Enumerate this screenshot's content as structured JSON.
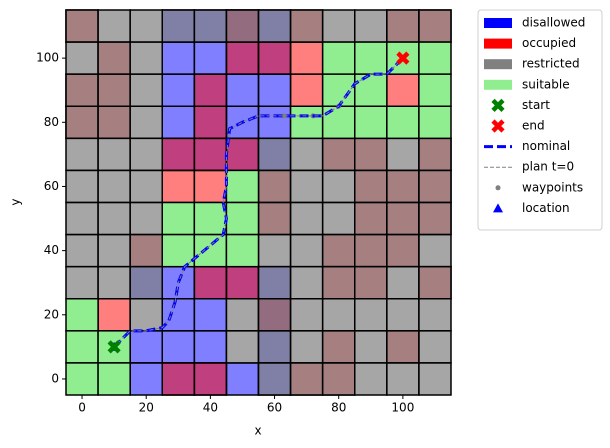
{
  "chart_data": {
    "type": "grid-map",
    "xlabel": "x",
    "ylabel": "y",
    "xlim": [
      -5,
      115
    ],
    "ylim": [
      -5,
      115
    ],
    "xticks": [
      0,
      20,
      40,
      60,
      80,
      100
    ],
    "yticks": [
      0,
      20,
      40,
      60,
      80,
      100
    ],
    "cell_size": 10,
    "series": [
      {
        "name": "disallowed",
        "type": "cells",
        "color": "#0000ff",
        "opacity": 0.5,
        "cells": [
          [
            30,
            110
          ],
          [
            40,
            110
          ],
          [
            50,
            110
          ],
          [
            60,
            110
          ],
          [
            30,
            100
          ],
          [
            40,
            100
          ],
          [
            50,
            100
          ],
          [
            60,
            100
          ],
          [
            30,
            90
          ],
          [
            40,
            90
          ],
          [
            50,
            90
          ],
          [
            60,
            90
          ],
          [
            30,
            80
          ],
          [
            40,
            80
          ],
          [
            50,
            80
          ],
          [
            60,
            80
          ],
          [
            30,
            70
          ],
          [
            40,
            70
          ],
          [
            50,
            70
          ],
          [
            60,
            70
          ],
          [
            20,
            30
          ],
          [
            30,
            30
          ],
          [
            40,
            30
          ],
          [
            50,
            30
          ],
          [
            60,
            30
          ],
          [
            30,
            20
          ],
          [
            40,
            20
          ],
          [
            60,
            20
          ],
          [
            20,
            10
          ],
          [
            30,
            10
          ],
          [
            40,
            10
          ],
          [
            60,
            10
          ],
          [
            20,
            0
          ],
          [
            30,
            0
          ],
          [
            40,
            0
          ],
          [
            50,
            0
          ],
          [
            60,
            0
          ]
        ]
      },
      {
        "name": "occupied",
        "type": "cells",
        "color": "#ff0000",
        "opacity": 0.5,
        "cells": [
          [
            0,
            110
          ],
          [
            50,
            110
          ],
          [
            70,
            110
          ],
          [
            100,
            110
          ],
          [
            110,
            110
          ],
          [
            10,
            100
          ],
          [
            50,
            100
          ],
          [
            60,
            100
          ],
          [
            70,
            100
          ],
          [
            0,
            90
          ],
          [
            10,
            90
          ],
          [
            40,
            90
          ],
          [
            70,
            90
          ],
          [
            100,
            90
          ],
          [
            0,
            80
          ],
          [
            10,
            80
          ],
          [
            40,
            80
          ],
          [
            30,
            70
          ],
          [
            40,
            70
          ],
          [
            50,
            70
          ],
          [
            80,
            70
          ],
          [
            90,
            70
          ],
          [
            110,
            70
          ],
          [
            30,
            60
          ],
          [
            40,
            60
          ],
          [
            60,
            60
          ],
          [
            90,
            60
          ],
          [
            100,
            60
          ],
          [
            110,
            60
          ],
          [
            60,
            50
          ],
          [
            90,
            50
          ],
          [
            100,
            50
          ],
          [
            110,
            50
          ],
          [
            20,
            40
          ],
          [
            80,
            40
          ],
          [
            90,
            40
          ],
          [
            100,
            40
          ],
          [
            40,
            30
          ],
          [
            50,
            30
          ],
          [
            80,
            30
          ],
          [
            90,
            30
          ],
          [
            110,
            30
          ],
          [
            10,
            20
          ],
          [
            60,
            20
          ],
          [
            80,
            10
          ],
          [
            100,
            10
          ],
          [
            30,
            0
          ],
          [
            40,
            0
          ],
          [
            70,
            0
          ],
          [
            80,
            0
          ]
        ]
      },
      {
        "name": "restricted",
        "type": "cells",
        "color": "#808080",
        "opacity": 0.7,
        "cells": [
          [
            0,
            110
          ],
          [
            10,
            110
          ],
          [
            20,
            110
          ],
          [
            30,
            110
          ],
          [
            40,
            110
          ],
          [
            50,
            110
          ],
          [
            60,
            110
          ],
          [
            70,
            110
          ],
          [
            80,
            110
          ],
          [
            90,
            110
          ],
          [
            100,
            110
          ],
          [
            110,
            110
          ],
          [
            0,
            100
          ],
          [
            10,
            100
          ],
          [
            20,
            100
          ],
          [
            0,
            90
          ],
          [
            10,
            90
          ],
          [
            20,
            90
          ],
          [
            0,
            80
          ],
          [
            10,
            80
          ],
          [
            20,
            80
          ],
          [
            0,
            70
          ],
          [
            10,
            70
          ],
          [
            20,
            70
          ],
          [
            60,
            70
          ],
          [
            70,
            70
          ],
          [
            80,
            70
          ],
          [
            90,
            70
          ],
          [
            100,
            70
          ],
          [
            110,
            70
          ],
          [
            0,
            60
          ],
          [
            10,
            60
          ],
          [
            20,
            60
          ],
          [
            60,
            60
          ],
          [
            70,
            60
          ],
          [
            80,
            60
          ],
          [
            90,
            60
          ],
          [
            100,
            60
          ],
          [
            110,
            60
          ],
          [
            0,
            50
          ],
          [
            10,
            50
          ],
          [
            20,
            50
          ],
          [
            60,
            50
          ],
          [
            70,
            50
          ],
          [
            80,
            50
          ],
          [
            90,
            50
          ],
          [
            100,
            50
          ],
          [
            110,
            50
          ],
          [
            0,
            40
          ],
          [
            10,
            40
          ],
          [
            20,
            40
          ],
          [
            60,
            40
          ],
          [
            70,
            40
          ],
          [
            80,
            40
          ],
          [
            90,
            40
          ],
          [
            100,
            40
          ],
          [
            110,
            40
          ],
          [
            0,
            30
          ],
          [
            10,
            30
          ],
          [
            20,
            30
          ],
          [
            60,
            30
          ],
          [
            70,
            30
          ],
          [
            80,
            30
          ],
          [
            90,
            30
          ],
          [
            100,
            30
          ],
          [
            110,
            30
          ],
          [
            20,
            20
          ],
          [
            50,
            20
          ],
          [
            60,
            20
          ],
          [
            70,
            20
          ],
          [
            80,
            20
          ],
          [
            90,
            20
          ],
          [
            100,
            20
          ],
          [
            110,
            20
          ],
          [
            50,
            10
          ],
          [
            60,
            10
          ],
          [
            70,
            10
          ],
          [
            80,
            10
          ],
          [
            90,
            10
          ],
          [
            100,
            10
          ],
          [
            110,
            10
          ],
          [
            60,
            0
          ],
          [
            70,
            0
          ],
          [
            80,
            0
          ],
          [
            90,
            0
          ],
          [
            100,
            0
          ],
          [
            110,
            0
          ]
        ]
      },
      {
        "name": "suitable",
        "type": "cells",
        "color": "#90ee90",
        "opacity": 1,
        "cells": [
          [
            80,
            100
          ],
          [
            90,
            100
          ],
          [
            100,
            100
          ],
          [
            110,
            100
          ],
          [
            80,
            90
          ],
          [
            90,
            90
          ],
          [
            110,
            90
          ],
          [
            70,
            80
          ],
          [
            80,
            80
          ],
          [
            90,
            80
          ],
          [
            100,
            80
          ],
          [
            110,
            80
          ],
          [
            50,
            60
          ],
          [
            30,
            50
          ],
          [
            40,
            50
          ],
          [
            50,
            50
          ],
          [
            30,
            40
          ],
          [
            40,
            40
          ],
          [
            50,
            40
          ],
          [
            0,
            20
          ],
          [
            0,
            10
          ],
          [
            10,
            10
          ],
          [
            0,
            0
          ],
          [
            10,
            0
          ]
        ]
      },
      {
        "name": "start",
        "type": "marker",
        "marker": "X",
        "color": "#008000",
        "x": [
          10
        ],
        "y": [
          10
        ]
      },
      {
        "name": "end",
        "type": "marker",
        "marker": "X",
        "color": "#ff0000",
        "x": [
          100
        ],
        "y": [
          100
        ]
      },
      {
        "name": "nominal",
        "type": "line",
        "dash": "thick",
        "color": "#0000ff",
        "x": [
          10,
          15,
          20,
          25,
          27,
          29,
          30,
          32,
          38,
          44,
          45,
          44,
          45,
          45,
          46,
          50,
          55,
          60,
          70,
          75,
          80,
          85,
          90,
          95,
          98,
          100
        ],
        "y": [
          10,
          15,
          15,
          16,
          18,
          24,
          30,
          35,
          40,
          45,
          50,
          55,
          60,
          70,
          78,
          80,
          82,
          82,
          82,
          82,
          85,
          92,
          95,
          95,
          98,
          100
        ]
      },
      {
        "name": "plan t=0",
        "type": "line",
        "dash": "thin",
        "color": "#808080",
        "x": [
          10,
          15,
          20,
          25,
          27,
          29,
          30,
          32,
          38,
          44,
          45,
          44,
          45,
          45,
          46,
          50,
          55,
          60,
          70,
          75,
          80,
          85,
          90,
          95,
          98,
          100
        ],
        "y": [
          10,
          15,
          15,
          16,
          18,
          24,
          30,
          35,
          40,
          45,
          50,
          55,
          60,
          70,
          78,
          80,
          82,
          82,
          82,
          82,
          85,
          92,
          95,
          95,
          98,
          100
        ]
      },
      {
        "name": "waypoints",
        "type": "marker",
        "marker": "o",
        "color": "#808080",
        "x": [
          63,
          72,
          80
        ],
        "y": [
          82,
          82,
          85
        ]
      },
      {
        "name": "location",
        "type": "marker",
        "marker": "^",
        "color": "#0000ff",
        "x": [
          10
        ],
        "y": [
          10
        ]
      }
    ]
  }
}
